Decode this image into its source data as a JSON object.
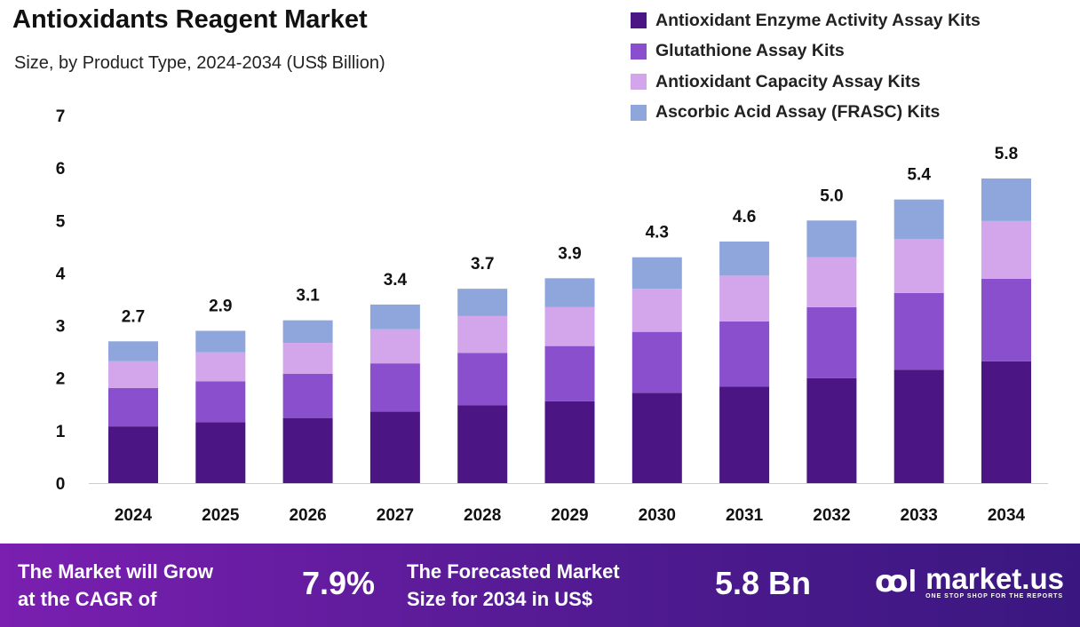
{
  "chart_data": {
    "type": "bar",
    "stacked": true,
    "title": "Antioxidants Reagent Market",
    "subtitle": "Size, by Product Type, 2024-2034 (US$ Billion)",
    "categories": [
      "2024",
      "2025",
      "2026",
      "2027",
      "2028",
      "2029",
      "2030",
      "2031",
      "2032",
      "2033",
      "2034"
    ],
    "series": [
      {
        "name": "Antioxidant Enzyme Activity Assay Kits",
        "color": "#4b1583",
        "values": [
          1.08,
          1.16,
          1.24,
          1.36,
          1.48,
          1.56,
          1.72,
          1.84,
          2.0,
          2.16,
          2.32
        ]
      },
      {
        "name": "Glutathione Assay Kits",
        "color": "#8a4fcc",
        "values": [
          0.73,
          0.78,
          0.84,
          0.92,
          1.0,
          1.05,
          1.16,
          1.24,
          1.35,
          1.46,
          1.57
        ]
      },
      {
        "name": "Antioxidant Capacity Assay Kits",
        "color": "#d3a6ec",
        "values": [
          0.51,
          0.55,
          0.59,
          0.65,
          0.7,
          0.74,
          0.82,
          0.87,
          0.95,
          1.03,
          1.1
        ]
      },
      {
        "name": "Ascorbic Acid Assay (FRASC) Kits",
        "color": "#8ea6dc",
        "values": [
          0.38,
          0.41,
          0.43,
          0.47,
          0.52,
          0.55,
          0.6,
          0.65,
          0.7,
          0.75,
          0.81
        ]
      }
    ],
    "totals": [
      "2.7",
      "2.9",
      "3.1",
      "3.4",
      "3.7",
      "3.9",
      "4.3",
      "4.6",
      "5.0",
      "5.4",
      "5.8"
    ],
    "yticks": [
      "0",
      "1",
      "2",
      "3",
      "4",
      "5",
      "6",
      "7"
    ],
    "ylim": [
      0,
      7
    ],
    "grid": false,
    "legend": "top-right"
  },
  "footer": {
    "cagr_text_1": "The Market will Grow",
    "cagr_text_2": "at the CAGR of",
    "cagr_value": "7.9%",
    "forecast_text_1": "The Forecasted Market",
    "forecast_text_2": "Size for 2034 in US$",
    "forecast_value": "5.8 Bn",
    "logo_name": "market.us",
    "logo_tagline": "ONE STOP SHOP FOR THE REPORTS"
  }
}
